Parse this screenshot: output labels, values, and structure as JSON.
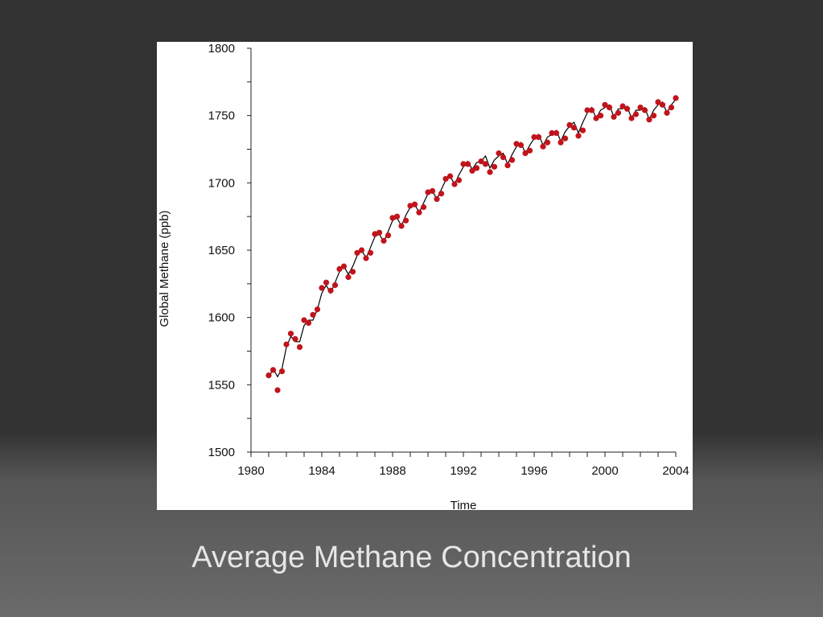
{
  "slide": {
    "caption": "Average Methane Concentration",
    "background_color": "#333333",
    "caption_color": "#e6e6e6"
  },
  "chart_data": {
    "type": "scatter",
    "title": "",
    "xlabel": "Time",
    "ylabel": "Global Methane (ppb)",
    "xlim": [
      1980,
      2004
    ],
    "ylim": [
      1500,
      1800
    ],
    "x_ticks": [
      1980,
      1984,
      1988,
      1992,
      1996,
      2000,
      2004
    ],
    "y_ticks": [
      1500,
      1550,
      1600,
      1650,
      1700,
      1750,
      1800
    ],
    "x_tick_labels": [
      "1980",
      "1984",
      "1988",
      "1992",
      "1996",
      "2000",
      "2004"
    ],
    "y_tick_labels": [
      "1500",
      "1550",
      "1600",
      "1650",
      "1700",
      "1750",
      "1800"
    ],
    "grid": false,
    "legend": "none",
    "series": [
      {
        "kind": "points",
        "color": "#c0141c",
        "x": [
          1981.0,
          1981.25,
          1981.5,
          1981.75,
          1982.0,
          1982.25,
          1982.5,
          1982.75,
          1983.0,
          1983.25,
          1983.5,
          1983.75,
          1984.0,
          1984.25,
          1984.5,
          1984.75,
          1985.0,
          1985.25,
          1985.5,
          1985.75,
          1986.0,
          1986.25,
          1986.5,
          1986.75,
          1987.0,
          1987.25,
          1987.5,
          1987.75,
          1988.0,
          1988.25,
          1988.5,
          1988.75,
          1989.0,
          1989.25,
          1989.5,
          1989.75,
          1990.0,
          1990.25,
          1990.5,
          1990.75,
          1991.0,
          1991.25,
          1991.5,
          1991.75,
          1992.0,
          1992.25,
          1992.5,
          1992.75,
          1993.0,
          1993.25,
          1993.5,
          1993.75,
          1994.0,
          1994.25,
          1994.5,
          1994.75,
          1995.0,
          1995.25,
          1995.5,
          1995.75,
          1996.0,
          1996.25,
          1996.5,
          1996.75,
          1997.0,
          1997.25,
          1997.5,
          1997.75,
          1998.0,
          1998.25,
          1998.5,
          1998.75,
          1999.0,
          1999.25,
          1999.5,
          1999.75,
          2000.0,
          2000.25,
          2000.5,
          2000.75,
          2001.0,
          2001.25,
          2001.5,
          2001.75,
          2002.0,
          2002.25,
          2002.5,
          2002.75,
          2003.0,
          2003.25,
          2003.5,
          2003.75,
          2004.0
        ],
        "y": [
          1557,
          1561,
          1546,
          1560,
          1580,
          1588,
          1584,
          1578,
          1598,
          1596,
          1602,
          1606,
          1622,
          1626,
          1620,
          1624,
          1636,
          1638,
          1630,
          1634,
          1648,
          1650,
          1644,
          1648,
          1662,
          1663,
          1657,
          1661,
          1674,
          1675,
          1668,
          1672,
          1683,
          1684,
          1678,
          1682,
          1693,
          1694,
          1688,
          1692,
          1703,
          1705,
          1699,
          1702,
          1714,
          1714,
          1709,
          1711,
          1716,
          1714,
          1708,
          1712,
          1722,
          1719,
          1713,
          1717,
          1729,
          1728,
          1722,
          1724,
          1734,
          1734,
          1727,
          1730,
          1737,
          1737,
          1730,
          1733,
          1743,
          1741,
          1735,
          1739,
          1754,
          1754,
          1748,
          1750,
          1758,
          1756,
          1749,
          1752,
          1757,
          1755,
          1748,
          1751,
          1756,
          1754,
          1747,
          1750,
          1760,
          1758,
          1752,
          1756,
          1763
        ]
      },
      {
        "kind": "line",
        "color": "#000000",
        "x": [
          1981.0,
          1981.25,
          1981.5,
          1981.75,
          1982.0,
          1982.25,
          1982.5,
          1982.75,
          1983.0,
          1983.25,
          1983.5,
          1983.75,
          1984.0,
          1984.25,
          1984.5,
          1984.75,
          1985.0,
          1985.25,
          1985.5,
          1985.75,
          1986.0,
          1986.25,
          1986.5,
          1986.75,
          1987.0,
          1987.25,
          1987.5,
          1987.75,
          1988.0,
          1988.25,
          1988.5,
          1988.75,
          1989.0,
          1989.25,
          1989.5,
          1989.75,
          1990.0,
          1990.25,
          1990.5,
          1990.75,
          1991.0,
          1991.25,
          1991.5,
          1991.75,
          1992.0,
          1992.25,
          1992.5,
          1992.75,
          1993.0,
          1993.25,
          1993.5,
          1993.75,
          1994.0,
          1994.25,
          1994.5,
          1994.75,
          1995.0,
          1995.25,
          1995.5,
          1995.75,
          1996.0,
          1996.25,
          1996.5,
          1996.75,
          1997.0,
          1997.25,
          1997.5,
          1997.75,
          1998.0,
          1998.25,
          1998.5,
          1998.75,
          1999.0,
          1999.25,
          1999.5,
          1999.75,
          2000.0,
          2000.25,
          2000.5,
          2000.75,
          2001.0,
          2001.25,
          2001.5,
          2001.75,
          2002.0,
          2002.25,
          2002.5,
          2002.75,
          2003.0,
          2003.25,
          2003.5,
          2003.75,
          2004.0
        ],
        "y": [
          1555,
          1562,
          1556,
          1562,
          1578,
          1586,
          1582,
          1582,
          1594,
          1598,
          1598,
          1606,
          1618,
          1624,
          1618,
          1626,
          1634,
          1638,
          1632,
          1638,
          1646,
          1650,
          1644,
          1652,
          1660,
          1662,
          1656,
          1664,
          1672,
          1674,
          1668,
          1676,
          1682,
          1684,
          1678,
          1685,
          1692,
          1694,
          1688,
          1695,
          1702,
          1705,
          1699,
          1706,
          1712,
          1716,
          1710,
          1715,
          1716,
          1720,
          1711,
          1717,
          1720,
          1722,
          1714,
          1721,
          1727,
          1730,
          1722,
          1728,
          1733,
          1736,
          1728,
          1734,
          1736,
          1739,
          1731,
          1738,
          1742,
          1745,
          1737,
          1745,
          1752,
          1756,
          1748,
          1754,
          1756,
          1758,
          1749,
          1755,
          1755,
          1757,
          1748,
          1754,
          1754,
          1756,
          1747,
          1754,
          1758,
          1760,
          1752,
          1758,
          1762
        ]
      }
    ]
  }
}
